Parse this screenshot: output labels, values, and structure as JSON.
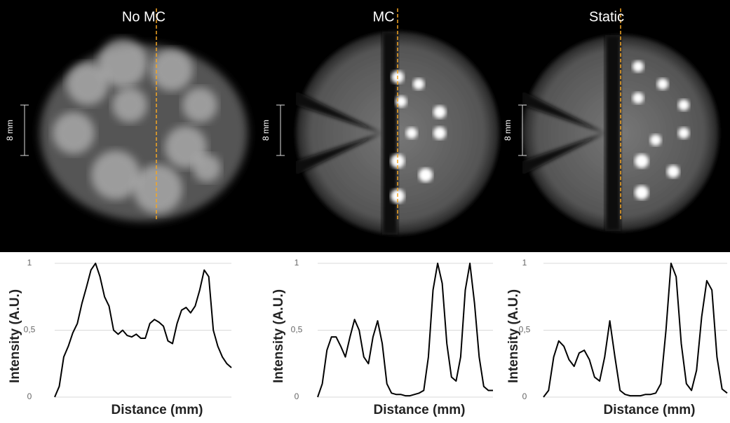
{
  "images": [
    {
      "title": "No MC",
      "scale_label": "8 mm"
    },
    {
      "title": "MC",
      "scale_label": "8 mm"
    },
    {
      "title": "Static",
      "scale_label": "8 mm"
    }
  ],
  "chart_data": [
    {
      "type": "line",
      "ylabel": "Intensity (A.U.)",
      "xlabel": "Distance (mm)",
      "color": "#000000",
      "ylim": [
        0,
        1
      ],
      "yticks": [
        0,
        {
          "value": 0.5,
          "label": "0,5"
        },
        1
      ],
      "grid": true,
      "values": [
        0,
        0.08,
        0.3,
        0.38,
        0.48,
        0.55,
        0.7,
        0.82,
        0.95,
        1.0,
        0.9,
        0.75,
        0.68,
        0.5,
        0.47,
        0.5,
        0.46,
        0.45,
        0.47,
        0.44,
        0.44,
        0.55,
        0.58,
        0.56,
        0.53,
        0.42,
        0.4,
        0.55,
        0.65,
        0.67,
        0.63,
        0.68,
        0.8,
        0.95,
        0.9,
        0.5,
        0.38,
        0.3,
        0.25,
        0.22
      ]
    },
    {
      "type": "line",
      "ylabel": "Intensity (A.U.)",
      "xlabel": "Distance (mm)",
      "color": "#000000",
      "ylim": [
        0,
        1
      ],
      "yticks": [
        0,
        {
          "value": 0.5,
          "label": "0,5"
        },
        1
      ],
      "grid": true,
      "values": [
        0,
        0.1,
        0.35,
        0.45,
        0.45,
        0.38,
        0.3,
        0.45,
        0.58,
        0.5,
        0.3,
        0.25,
        0.45,
        0.57,
        0.4,
        0.1,
        0.03,
        0.02,
        0.02,
        0.01,
        0.01,
        0.02,
        0.03,
        0.05,
        0.3,
        0.8,
        1.0,
        0.85,
        0.4,
        0.15,
        0.12,
        0.3,
        0.8,
        1.0,
        0.7,
        0.3,
        0.08,
        0.05,
        0.05
      ]
    },
    {
      "type": "line",
      "ylabel": "Intensity (A.U.)",
      "xlabel": "Distance (mm)",
      "color": "#000000",
      "ylim": [
        0,
        1
      ],
      "yticks": [
        0,
        {
          "value": 0.5,
          "label": "0,5"
        },
        1
      ],
      "grid": true,
      "values": [
        0,
        0.05,
        0.3,
        0.42,
        0.38,
        0.28,
        0.23,
        0.33,
        0.35,
        0.28,
        0.15,
        0.12,
        0.3,
        0.57,
        0.3,
        0.05,
        0.02,
        0.01,
        0.01,
        0.01,
        0.02,
        0.02,
        0.03,
        0.1,
        0.5,
        1.0,
        0.9,
        0.4,
        0.1,
        0.05,
        0.2,
        0.6,
        0.87,
        0.8,
        0.3,
        0.06,
        0.03
      ]
    }
  ]
}
